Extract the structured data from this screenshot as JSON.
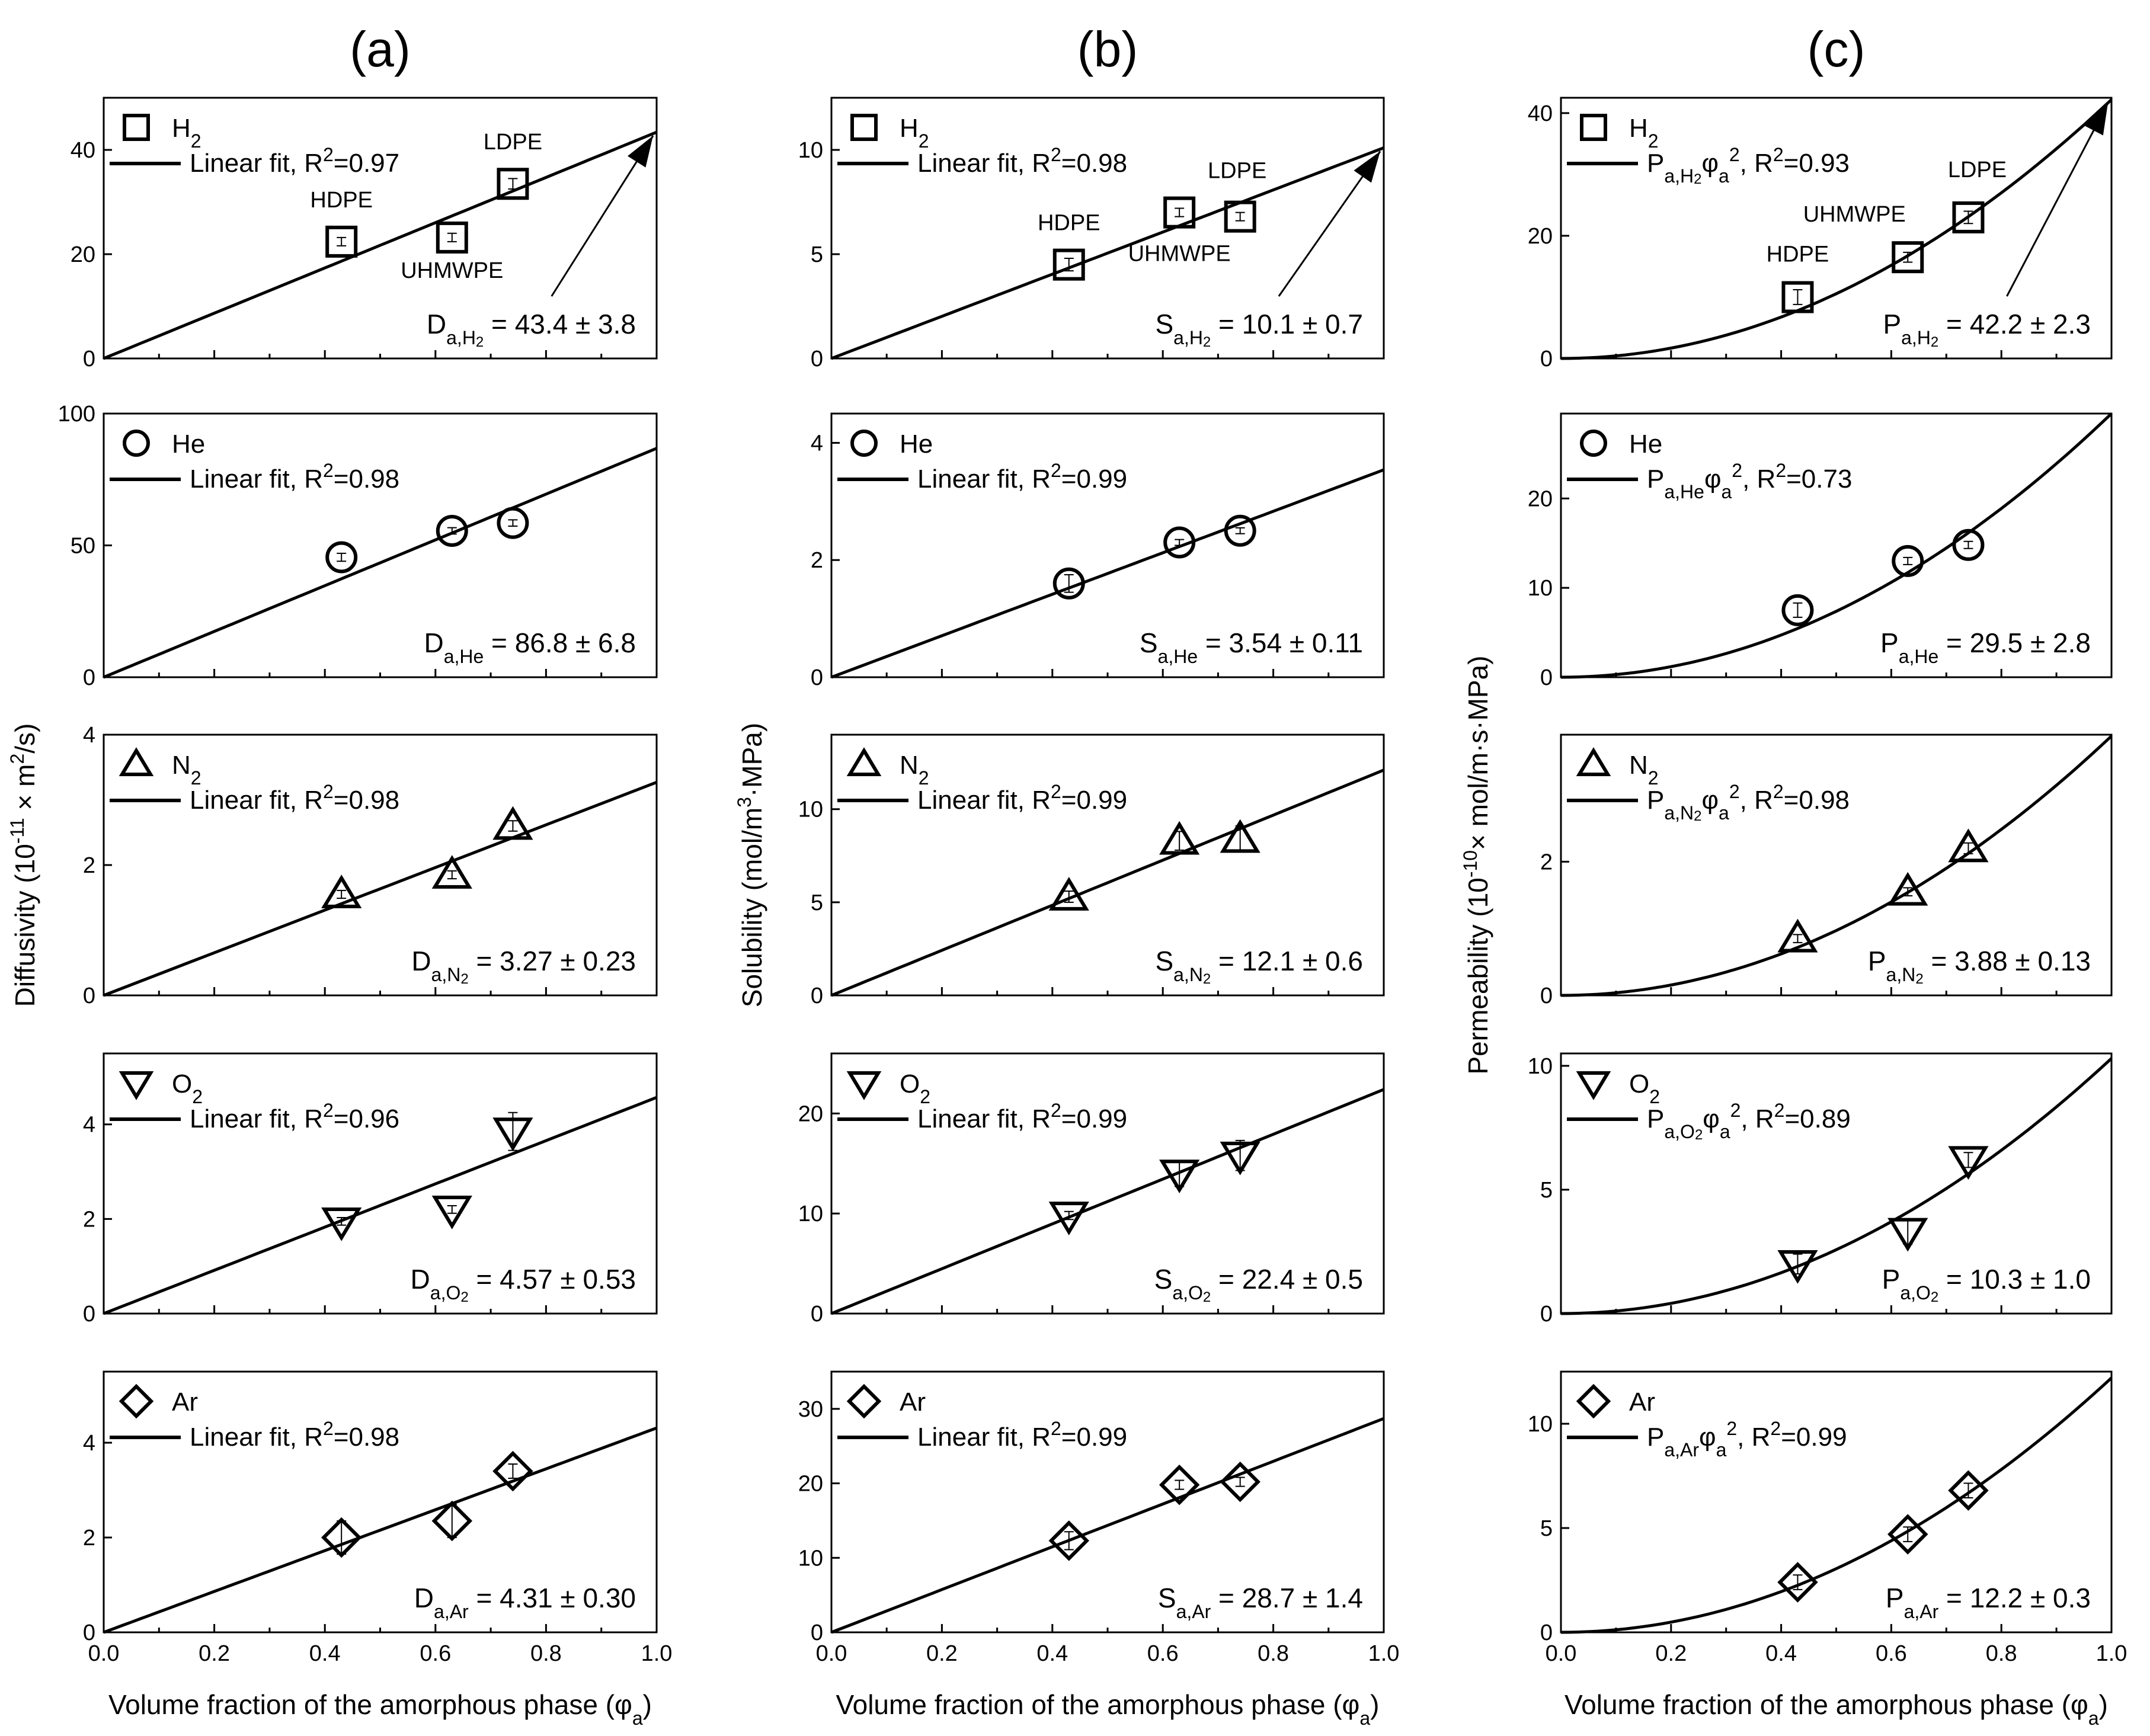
{
  "panel_labels": [
    "(a)",
    "(b)",
    "(c)"
  ],
  "xlabel_main": "Volume fraction of the amorphous phase (φ",
  "xlabel_sub": "a",
  "xlabel_close": ")",
  "ylabels": {
    "a": {
      "pre": "Diffusivity (10",
      "sup": "-11",
      "post": " × m",
      "sup2": "2",
      "post2": "/s)"
    },
    "b": {
      "pre": "Solubility (mol/m",
      "sup": "3",
      "post": "·MPa)",
      "sup2": "",
      "post2": ""
    },
    "c": {
      "pre": "Permeability (10",
      "sup": "-10",
      "post": "× mol/m·s·MPa)",
      "sup2": "",
      "post2": ""
    }
  },
  "x_ticks": [
    "0.0",
    "0.2",
    "0.4",
    "0.6",
    "0.8",
    "1.0"
  ],
  "material_labels": {
    "hdpe": "HDPE",
    "uhmwpe": "UHMWPE",
    "ldpe": "LDPE"
  },
  "colors": {
    "line": "#000000",
    "marker": "#000000",
    "background": "#ffffff"
  },
  "chart_data": [
    {
      "id": "a-H2",
      "type": "scatter",
      "column": "a",
      "row": 0,
      "gas": "H",
      "gas_sub": "2",
      "marker": "square",
      "legend_fit": "Linear fit, R",
      "legend_fit_sup": "2",
      "legend_fit_tail": "=0.97",
      "fit": "linear",
      "fit_value": 43.4,
      "annot": {
        "prefix": "D",
        "sub": "a,H",
        "subsub": "2",
        "text": " = 43.4 ± 3.8"
      },
      "x": [
        0.43,
        0.63,
        0.74
      ],
      "y": [
        22.4,
        23.2,
        33.5
      ],
      "err": [
        0.8,
        0.8,
        1.0
      ],
      "ylim": [
        0,
        50
      ],
      "yticks": [
        "0",
        "20",
        "40"
      ],
      "show_material_labels": true
    },
    {
      "id": "a-He",
      "type": "scatter",
      "column": "a",
      "row": 1,
      "gas": "He",
      "gas_sub": "",
      "marker": "circle",
      "legend_fit": "Linear fit, R",
      "legend_fit_sup": "2",
      "legend_fit_tail": "=0.98",
      "fit": "linear",
      "fit_value": 86.8,
      "annot": {
        "prefix": "D",
        "sub": "a,He",
        "subsub": "",
        "text": " = 86.8 ± 6.8"
      },
      "x": [
        0.43,
        0.63,
        0.74
      ],
      "y": [
        45.5,
        55.5,
        58.5
      ],
      "err": [
        1.5,
        1.2,
        1.2
      ],
      "ylim": [
        0,
        100
      ],
      "yticks": [
        "0",
        "50",
        "100"
      ],
      "show_material_labels": false
    },
    {
      "id": "a-N2",
      "type": "scatter",
      "column": "a",
      "row": 2,
      "gas": "N",
      "gas_sub": "2",
      "marker": "triangle-up",
      "legend_fit": "Linear fit, R",
      "legend_fit_sup": "2",
      "legend_fit_tail": "=0.98",
      "fit": "linear",
      "fit_value": 3.27,
      "annot": {
        "prefix": "D",
        "sub": "a,N",
        "subsub": "2",
        "text": " = 3.27 ± 0.23"
      },
      "x": [
        0.43,
        0.63,
        0.74
      ],
      "y": [
        1.55,
        1.85,
        2.6
      ],
      "err": [
        0.06,
        0.06,
        0.08
      ],
      "ylim": [
        0,
        4
      ],
      "yticks": [
        "0",
        "2",
        "4"
      ],
      "show_material_labels": false
    },
    {
      "id": "a-O2",
      "type": "scatter",
      "column": "a",
      "row": 3,
      "gas": "O",
      "gas_sub": "2",
      "marker": "triangle-down",
      "legend_fit": "Linear fit, R",
      "legend_fit_sup": "2",
      "legend_fit_tail": "=0.96",
      "fit": "linear",
      "fit_value": 4.57,
      "annot": {
        "prefix": "D",
        "sub": "a,O",
        "subsub": "2",
        "text": " = 4.57 ± 0.53"
      },
      "x": [
        0.43,
        0.63,
        0.74
      ],
      "y": [
        1.95,
        2.2,
        3.85
      ],
      "err": [
        0.08,
        0.08,
        0.4
      ],
      "ylim": [
        0,
        5.5
      ],
      "yticks": [
        "0",
        "2",
        "4"
      ],
      "show_material_labels": false
    },
    {
      "id": "a-Ar",
      "type": "scatter",
      "column": "a",
      "row": 4,
      "gas": "Ar",
      "gas_sub": "",
      "marker": "diamond",
      "legend_fit": "Linear fit, R",
      "legend_fit_sup": "2",
      "legend_fit_tail": "=0.98",
      "fit": "linear",
      "fit_value": 4.31,
      "annot": {
        "prefix": "D",
        "sub": "a,Ar",
        "subsub": "",
        "text": " = 4.31 ± 0.30"
      },
      "x": [
        0.43,
        0.63,
        0.74
      ],
      "y": [
        2.0,
        2.35,
        3.4
      ],
      "err": [
        0.35,
        0.35,
        0.15
      ],
      "ylim": [
        0,
        5.5
      ],
      "yticks": [
        "0",
        "2",
        "4"
      ],
      "show_material_labels": false
    },
    {
      "id": "b-H2",
      "type": "scatter",
      "column": "b",
      "row": 0,
      "gas": "H",
      "gas_sub": "2",
      "marker": "square",
      "legend_fit": "Linear fit, R",
      "legend_fit_sup": "2",
      "legend_fit_tail": "=0.98",
      "fit": "linear",
      "fit_value": 10.1,
      "annot": {
        "prefix": "S",
        "sub": "a,H",
        "subsub": "2",
        "text": " = 10.1 ± 0.7"
      },
      "x": [
        0.43,
        0.63,
        0.74
      ],
      "y": [
        4.5,
        7.0,
        6.8
      ],
      "err": [
        0.3,
        0.2,
        0.2
      ],
      "ylim": [
        0,
        12.5
      ],
      "yticks": [
        "0",
        "5",
        "10"
      ],
      "show_material_labels": true
    },
    {
      "id": "b-He",
      "type": "scatter",
      "column": "b",
      "row": 1,
      "gas": "He",
      "gas_sub": "",
      "marker": "circle",
      "legend_fit": "Linear fit, R",
      "legend_fit_sup": "2",
      "legend_fit_tail": "=0.99",
      "fit": "linear",
      "fit_value": 3.54,
      "annot": {
        "prefix": "S",
        "sub": "a,He",
        "subsub": "",
        "text": " = 3.54 ± 0.11"
      },
      "x": [
        0.43,
        0.63,
        0.74
      ],
      "y": [
        1.6,
        2.3,
        2.5
      ],
      "err": [
        0.15,
        0.05,
        0.05
      ],
      "ylim": [
        0,
        4.5
      ],
      "yticks": [
        "0",
        "2",
        "4"
      ],
      "show_material_labels": false
    },
    {
      "id": "b-N2",
      "type": "scatter",
      "column": "b",
      "row": 2,
      "gas": "N",
      "gas_sub": "2",
      "marker": "triangle-up",
      "legend_fit": "Linear fit, R",
      "legend_fit_sup": "2",
      "legend_fit_tail": "=0.99",
      "fit": "linear",
      "fit_value": 12.1,
      "annot": {
        "prefix": "S",
        "sub": "a,N",
        "subsub": "2",
        "text": " = 12.1 ± 0.6"
      },
      "x": [
        0.43,
        0.63,
        0.74
      ],
      "y": [
        5.3,
        8.3,
        8.4
      ],
      "err": [
        0.3,
        0.5,
        0.7
      ],
      "ylim": [
        0,
        14
      ],
      "yticks": [
        "0",
        "5",
        "10"
      ],
      "show_material_labels": false
    },
    {
      "id": "b-O2",
      "type": "scatter",
      "column": "b",
      "row": 3,
      "gas": "O",
      "gas_sub": "2",
      "marker": "triangle-down",
      "legend_fit": "Linear fit, R",
      "legend_fit_sup": "2",
      "legend_fit_tail": "=0.99",
      "fit": "linear",
      "fit_value": 22.4,
      "annot": {
        "prefix": "S",
        "sub": "a,O",
        "subsub": "2",
        "text": " = 22.4 ± 0.5"
      },
      "x": [
        0.43,
        0.63,
        0.74
      ],
      "y": [
        9.8,
        14.0,
        15.8
      ],
      "err": [
        0.4,
        1.3,
        1.5
      ],
      "ylim": [
        0,
        26
      ],
      "yticks": [
        "0",
        "10",
        "20"
      ],
      "show_material_labels": false
    },
    {
      "id": "b-Ar",
      "type": "scatter",
      "column": "b",
      "row": 4,
      "gas": "Ar",
      "gas_sub": "",
      "marker": "diamond",
      "legend_fit": "Linear fit, R",
      "legend_fit_sup": "2",
      "legend_fit_tail": "=0.99",
      "fit": "linear",
      "fit_value": 28.7,
      "annot": {
        "prefix": "S",
        "sub": "a,Ar",
        "subsub": "",
        "text": " = 28.7 ± 1.4"
      },
      "x": [
        0.43,
        0.63,
        0.74
      ],
      "y": [
        12.3,
        19.8,
        20.2
      ],
      "err": [
        1.2,
        0.6,
        0.6
      ],
      "ylim": [
        0,
        35
      ],
      "yticks": [
        "0",
        "10",
        "20",
        "30"
      ],
      "show_material_labels": false
    },
    {
      "id": "c-H2",
      "type": "scatter",
      "column": "c",
      "row": 0,
      "gas": "H",
      "gas_sub": "2",
      "marker": "square",
      "legend_fit": "P",
      "legend_fit_sub": "a,H",
      "legend_fit_subsub": "2",
      "legend_fit_tail2": "φ",
      "legend_fit_phi_sub": "a",
      "legend_fit_phi_sup": "2",
      "legend_fit_tail": ", R",
      "legend_fit_sup": "2",
      "legend_fit_end": "=0.93",
      "fit": "quadratic",
      "fit_value": 42.2,
      "annot": {
        "prefix": "P",
        "sub": "a,H",
        "subsub": "2",
        "text": " = 42.2 ± 2.3"
      },
      "x": [
        0.43,
        0.63,
        0.74
      ],
      "y": [
        10.0,
        16.5,
        23.0
      ],
      "err": [
        1.2,
        0.8,
        1.0
      ],
      "ylim": [
        0,
        42.5
      ],
      "yticks": [
        "0",
        "20",
        "40"
      ],
      "show_material_labels": true
    },
    {
      "id": "c-He",
      "type": "scatter",
      "column": "c",
      "row": 1,
      "gas": "He",
      "gas_sub": "",
      "marker": "circle",
      "legend_fit": "P",
      "legend_fit_sub": "a,He",
      "legend_fit_subsub": "",
      "legend_fit_tail2": "φ",
      "legend_fit_phi_sub": "a",
      "legend_fit_phi_sup": "2",
      "legend_fit_tail": ", R",
      "legend_fit_sup": "2",
      "legend_fit_end": "=0.73",
      "fit": "quadratic",
      "fit_value": 29.5,
      "annot": {
        "prefix": "P",
        "sub": "a,He",
        "subsub": "",
        "text": " = 29.5 ± 2.8"
      },
      "x": [
        0.43,
        0.63,
        0.74
      ],
      "y": [
        7.5,
        13.0,
        14.8
      ],
      "err": [
        0.8,
        0.4,
        0.4
      ],
      "ylim": [
        0,
        29.5
      ],
      "yticks": [
        "0",
        "10",
        "20"
      ],
      "show_material_labels": false
    },
    {
      "id": "c-N2",
      "type": "scatter",
      "column": "c",
      "row": 2,
      "gas": "N",
      "gas_sub": "2",
      "marker": "triangle-up",
      "legend_fit": "P",
      "legend_fit_sub": "a,N",
      "legend_fit_subsub": "2",
      "legend_fit_tail2": "φ",
      "legend_fit_phi_sub": "a",
      "legend_fit_phi_sup": "2",
      "legend_fit_tail": ", R",
      "legend_fit_sup": "2",
      "legend_fit_end": "=0.98",
      "fit": "quadratic",
      "fit_value": 3.88,
      "annot": {
        "prefix": "P",
        "sub": "a,N",
        "subsub": "2",
        "text": " = 3.88 ± 0.13"
      },
      "x": [
        0.43,
        0.63,
        0.74
      ],
      "y": [
        0.85,
        1.55,
        2.2
      ],
      "err": [
        0.06,
        0.06,
        0.08
      ],
      "ylim": [
        0,
        3.9
      ],
      "yticks": [
        "0",
        "2"
      ],
      "show_material_labels": false
    },
    {
      "id": "c-O2",
      "type": "scatter",
      "column": "c",
      "row": 3,
      "gas": "O",
      "gas_sub": "2",
      "marker": "triangle-down",
      "legend_fit": "P",
      "legend_fit_sub": "a,O",
      "legend_fit_subsub": "2",
      "legend_fit_tail2": "φ",
      "legend_fit_phi_sub": "a",
      "legend_fit_phi_sup": "2",
      "legend_fit_tail": ", R",
      "legend_fit_sup": "2",
      "legend_fit_end": "=0.89",
      "fit": "quadratic",
      "fit_value": 10.3,
      "annot": {
        "prefix": "P",
        "sub": "a,O",
        "subsub": "2",
        "text": " = 10.3 ± 1.0"
      },
      "x": [
        0.43,
        0.63,
        0.74
      ],
      "y": [
        2.0,
        3.3,
        6.2
      ],
      "err": [
        0.4,
        0.5,
        0.3
      ],
      "ylim": [
        0,
        10.5
      ],
      "yticks": [
        "0",
        "5",
        "10"
      ],
      "show_material_labels": false
    },
    {
      "id": "c-Ar",
      "type": "scatter",
      "column": "c",
      "row": 4,
      "gas": "Ar",
      "gas_sub": "",
      "marker": "diamond",
      "legend_fit": "P",
      "legend_fit_sub": "a,Ar",
      "legend_fit_subsub": "",
      "legend_fit_tail2": "φ",
      "legend_fit_phi_sub": "a",
      "legend_fit_phi_sup": "2",
      "legend_fit_tail": ", R",
      "legend_fit_sup": "2",
      "legend_fit_end": "=0.99",
      "fit": "quadratic",
      "fit_value": 12.2,
      "annot": {
        "prefix": "P",
        "sub": "a,Ar",
        "subsub": "",
        "text": " = 12.2 ± 0.3"
      },
      "x": [
        0.43,
        0.63,
        0.74
      ],
      "y": [
        2.4,
        4.7,
        6.8
      ],
      "err": [
        0.35,
        0.35,
        0.35
      ],
      "ylim": [
        0,
        12.5
      ],
      "yticks": [
        "0",
        "5",
        "10"
      ],
      "show_material_labels": false
    }
  ]
}
